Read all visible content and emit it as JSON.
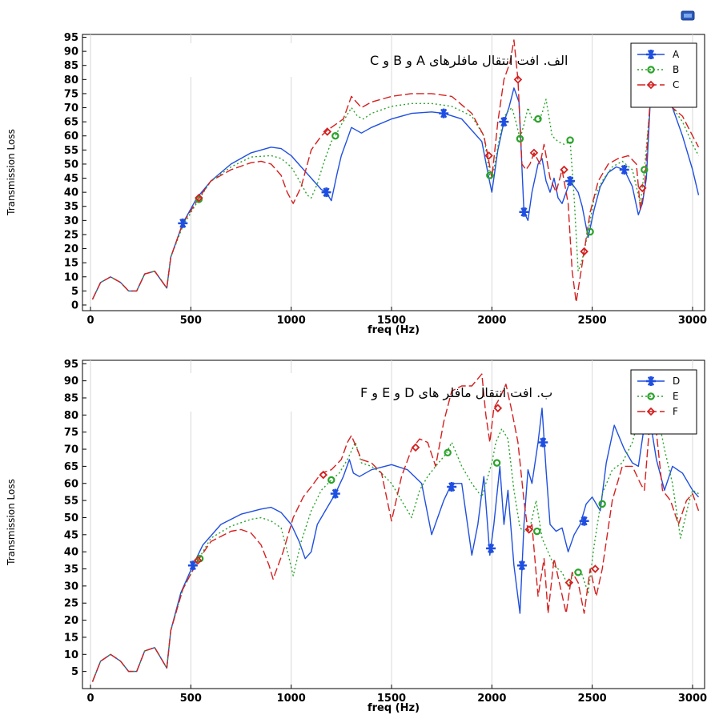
{
  "chart_data": [
    {
      "type": "line",
      "title": "الف. افت انتقال مافلرهای A و B و C",
      "xlabel": "freq (Hz)",
      "ylabel": "Transmission Loss",
      "xlim": [
        -40,
        3060
      ],
      "ylim": [
        -2,
        96
      ],
      "xticks": [
        0,
        500,
        1000,
        1500,
        2000,
        2500,
        3000
      ],
      "yticks": [
        0,
        5,
        10,
        15,
        20,
        25,
        30,
        35,
        40,
        45,
        50,
        55,
        60,
        65,
        70,
        75,
        80,
        85,
        90,
        95
      ],
      "grid": true,
      "legend_position": "top-right",
      "series": [
        {
          "name": "A",
          "color": "#1f4fe0",
          "dash": "solid",
          "marker": "asterisk",
          "x": [
            10,
            50,
            100,
            150,
            190,
            230,
            270,
            320,
            350,
            380,
            400,
            460,
            530,
            600,
            700,
            800,
            900,
            950,
            1000,
            1050,
            1100,
            1150,
            1175,
            1200,
            1230,
            1250,
            1280,
            1300,
            1350,
            1400,
            1500,
            1600,
            1700,
            1760,
            1850,
            1950,
            1985,
            2000,
            2030,
            2060,
            2085,
            2110,
            2135,
            2160,
            2180,
            2200,
            2230,
            2250,
            2270,
            2290,
            2310,
            2330,
            2350,
            2370,
            2390,
            2410,
            2430,
            2450,
            2480,
            2510,
            2540,
            2580,
            2620,
            2660,
            2700,
            2730,
            2750,
            2770,
            2790,
            2810,
            2830,
            2860,
            2900,
            2950,
            3000,
            3030
          ],
          "y": [
            2,
            8,
            10,
            8,
            5,
            5,
            11,
            12,
            9,
            6,
            17,
            29,
            38,
            44,
            50,
            54,
            56,
            55.5,
            53,
            49,
            45,
            41,
            40,
            37,
            47,
            53,
            59,
            63,
            61,
            63,
            66,
            68,
            68.5,
            68,
            66,
            58,
            45,
            40,
            55,
            65,
            70,
            77,
            72,
            33,
            30,
            40,
            50,
            52,
            44,
            40,
            45,
            38,
            36,
            40,
            44,
            42,
            40,
            35,
            24,
            34,
            42,
            47,
            49,
            48,
            42,
            32,
            36,
            45,
            73,
            80,
            78,
            73,
            70,
            60,
            48,
            39
          ],
          "markers_x": [
            460,
            1175,
            1760,
            2060,
            2160,
            2390,
            2660,
            2800
          ],
          "markers_y": [
            29,
            40,
            68,
            65,
            33,
            44,
            48,
            73
          ]
        },
        {
          "name": "B",
          "color": "#2aa32a",
          "dash": "dotted",
          "marker": "circle",
          "x": [
            10,
            50,
            100,
            150,
            190,
            230,
            270,
            320,
            350,
            380,
            400,
            460,
            540,
            600,
            700,
            800,
            900,
            950,
            1000,
            1050,
            1080,
            1100,
            1130,
            1160,
            1200,
            1220,
            1250,
            1300,
            1330,
            1360,
            1400,
            1500,
            1600,
            1700,
            1800,
            1900,
            1960,
            1990,
            2010,
            2040,
            2070,
            2100,
            2120,
            2140,
            2160,
            2180,
            2200,
            2230,
            2250,
            2270,
            2300,
            2330,
            2360,
            2390,
            2410,
            2430,
            2450,
            2480,
            2510,
            2550,
            2600,
            2650,
            2700,
            2740,
            2760,
            2790,
            2810,
            2850,
            2900,
            2950,
            3000,
            3030
          ],
          "y": [
            2,
            8,
            10,
            8,
            5,
            5,
            11,
            12,
            9,
            6,
            17,
            28,
            37.5,
            44,
            49,
            52.5,
            53,
            52,
            49,
            43,
            39,
            38,
            43,
            50,
            58,
            60,
            64,
            70,
            67,
            66,
            68,
            70.5,
            71.5,
            71.5,
            70.5,
            67,
            60,
            46,
            48,
            60,
            68,
            70,
            65,
            59,
            64,
            70,
            66,
            65,
            68,
            73,
            60,
            58,
            57,
            58,
            38,
            12,
            16,
            26,
            38,
            44,
            49,
            51,
            48,
            36,
            48,
            72,
            79,
            74,
            70,
            65,
            57,
            53
          ],
          "markers_x": [
            540,
            1220,
            1990,
            2140,
            2230,
            2390,
            2490,
            2760
          ],
          "markers_y": [
            37.5,
            60,
            46,
            59,
            66,
            58.5,
            26,
            48
          ]
        },
        {
          "name": "C",
          "color": "#d42020",
          "dash": "dashed",
          "marker": "diamond",
          "x": [
            10,
            50,
            100,
            150,
            190,
            230,
            270,
            320,
            350,
            380,
            400,
            460,
            540,
            600,
            700,
            800,
            850,
            900,
            950,
            980,
            1010,
            1050,
            1100,
            1150,
            1180,
            1220,
            1260,
            1300,
            1350,
            1400,
            1500,
            1600,
            1700,
            1800,
            1900,
            1960,
            1980,
            2000,
            2030,
            2060,
            2090,
            2110,
            2130,
            2150,
            2170,
            2190,
            2210,
            2240,
            2260,
            2290,
            2320,
            2350,
            2380,
            2400,
            2420,
            2440,
            2460,
            2490,
            2530,
            2580,
            2630,
            2680,
            2720,
            2740,
            2760,
            2790,
            2820,
            2850,
            2900,
            2950,
            3000,
            3030
          ],
          "y": [
            2,
            8,
            10,
            8,
            5,
            5,
            11,
            12,
            9,
            6,
            17,
            29,
            38,
            44,
            48,
            50.5,
            51,
            50,
            46,
            40,
            36,
            42,
            55,
            60,
            62,
            64,
            66,
            74,
            70,
            72,
            74,
            75,
            75,
            74,
            68,
            60,
            53,
            45,
            65,
            80,
            86,
            94,
            80,
            50,
            48,
            50,
            54,
            50,
            57,
            45,
            40,
            48,
            36,
            12,
            1,
            10,
            19,
            33,
            44,
            50,
            52,
            53,
            50,
            34,
            41,
            74,
            82,
            75,
            70,
            67,
            60,
            56
          ],
          "markers_x": [
            540,
            1180,
            1985,
            2130,
            2210,
            2360,
            2460,
            2750
          ],
          "markers_y": [
            38,
            61.5,
            53,
            80,
            54,
            48,
            19,
            41.5
          ]
        }
      ]
    },
    {
      "type": "line",
      "title": "ب. افت انتقال مافلر های D و E و F",
      "xlabel": "freq (Hz)",
      "ylabel": "Transmission Loss",
      "xlim": [
        -40,
        3060
      ],
      "ylim": [
        0,
        96
      ],
      "xticks": [
        0,
        500,
        1000,
        1500,
        2000,
        2500,
        3000
      ],
      "yticks": [
        5,
        10,
        15,
        20,
        25,
        30,
        35,
        40,
        45,
        50,
        55,
        60,
        65,
        70,
        75,
        80,
        85,
        90,
        95
      ],
      "grid": true,
      "legend_position": "top-right",
      "series": [
        {
          "name": "D",
          "color": "#1f4fe0",
          "dash": "solid",
          "marker": "asterisk",
          "x": [
            10,
            50,
            100,
            150,
            190,
            230,
            270,
            320,
            350,
            380,
            400,
            450,
            510,
            560,
            650,
            750,
            850,
            900,
            950,
            1000,
            1040,
            1070,
            1100,
            1130,
            1170,
            1220,
            1260,
            1290,
            1310,
            1340,
            1400,
            1500,
            1580,
            1650,
            1700,
            1730,
            1760,
            1800,
            1850,
            1900,
            1930,
            1960,
            1990,
            2010,
            2040,
            2060,
            2080,
            2110,
            2140,
            2160,
            2180,
            2200,
            2230,
            2250,
            2270,
            2290,
            2320,
            2350,
            2380,
            2410,
            2440,
            2470,
            2500,
            2540,
            2570,
            2610,
            2660,
            2700,
            2730,
            2760,
            2790,
            2820,
            2860,
            2900,
            2950,
            3000,
            3030
          ],
          "y": [
            2,
            8,
            10,
            8,
            5,
            5,
            11,
            12,
            9,
            6,
            17,
            28,
            36,
            42,
            48,
            51,
            52.5,
            53,
            51.5,
            48,
            43,
            38,
            40,
            48,
            52,
            57,
            62,
            67,
            63,
            62,
            64,
            65.5,
            64,
            60,
            45,
            50,
            55,
            60,
            60,
            39,
            48,
            62,
            39,
            48,
            65,
            48,
            58,
            36,
            22,
            48,
            64,
            60,
            72,
            82,
            64,
            48,
            46,
            47,
            40,
            45,
            48,
            54,
            56,
            52,
            66,
            77,
            70,
            66,
            65,
            77,
            78,
            67,
            58,
            65,
            63,
            58,
            56
          ],
          "markers_x": [
            510,
            1220,
            1800,
            1995,
            2150,
            2255,
            2460,
            2800
          ],
          "markers_y": [
            36,
            57,
            59,
            41,
            36,
            72,
            49,
            78
          ]
        },
        {
          "name": "E",
          "color": "#2aa32a",
          "dash": "dotted",
          "marker": "circle",
          "x": [
            10,
            50,
            100,
            150,
            190,
            230,
            270,
            320,
            350,
            380,
            400,
            460,
            540,
            600,
            700,
            800,
            850,
            900,
            950,
            990,
            1010,
            1050,
            1100,
            1150,
            1200,
            1240,
            1280,
            1320,
            1350,
            1400,
            1450,
            1500,
            1550,
            1600,
            1640,
            1680,
            1720,
            1770,
            1800,
            1850,
            1900,
            1950,
            1980,
            2000,
            2020,
            2050,
            2080,
            2110,
            2140,
            2160,
            2190,
            2220,
            2250,
            2280,
            2310,
            2350,
            2380,
            2410,
            2440,
            2480,
            2510,
            2550,
            2600,
            2650,
            2700,
            2750,
            2790,
            2820,
            2860,
            2900,
            2940,
            2980,
            3000,
            3030
          ],
          "y": [
            2,
            8,
            10,
            8,
            5,
            5,
            11,
            12,
            9,
            6,
            17,
            29,
            38,
            44,
            47.5,
            49.5,
            50,
            49,
            47,
            38,
            33,
            43,
            52,
            58,
            61,
            63,
            67,
            72,
            66,
            65,
            63,
            60,
            55,
            50,
            58,
            62,
            65,
            68.5,
            72,
            65,
            60,
            56,
            62,
            66,
            72,
            76,
            73,
            58,
            47,
            46,
            47,
            55,
            44,
            40,
            36,
            34,
            30,
            34,
            35,
            28,
            42,
            57,
            64,
            66,
            72,
            83,
            90,
            82,
            70,
            60,
            44,
            54,
            58,
            57
          ],
          "markers_x": [
            545,
            1200,
            1780,
            2025,
            2225,
            2430,
            2550
          ],
          "markers_y": [
            38,
            61,
            69,
            66,
            46,
            34,
            54
          ]
        },
        {
          "name": "F",
          "color": "#d42020",
          "dash": "dashed",
          "marker": "diamond",
          "x": [
            10,
            50,
            100,
            150,
            190,
            230,
            270,
            320,
            350,
            380,
            400,
            460,
            530,
            600,
            700,
            750,
            800,
            850,
            890,
            910,
            960,
            1010,
            1060,
            1100,
            1150,
            1200,
            1250,
            1280,
            1300,
            1350,
            1400,
            1450,
            1500,
            1550,
            1600,
            1640,
            1680,
            1720,
            1760,
            1800,
            1850,
            1900,
            1950,
            1970,
            1990,
            2010,
            2040,
            2070,
            2100,
            2130,
            2160,
            2180,
            2200,
            2230,
            2260,
            2280,
            2310,
            2340,
            2370,
            2400,
            2430,
            2460,
            2490,
            2520,
            2550,
            2600,
            2650,
            2700,
            2740,
            2760,
            2790,
            2820,
            2850,
            2890,
            2930,
            2970,
            3000,
            3030
          ],
          "y": [
            2,
            8,
            10,
            8,
            5,
            5,
            11,
            12,
            9,
            6,
            17,
            29,
            37,
            43,
            46,
            46.5,
            45.5,
            42,
            36,
            32,
            40,
            50,
            56,
            59,
            63,
            64,
            67,
            72,
            74,
            67,
            66,
            63,
            49,
            62,
            70,
            73,
            72,
            65,
            78,
            87,
            88.5,
            88.5,
            92,
            80,
            72,
            82,
            85,
            89,
            81,
            72,
            55,
            46,
            48,
            27,
            38,
            22,
            38,
            30,
            22,
            34,
            31,
            22,
            35,
            27,
            35,
            55,
            65,
            65,
            60,
            58,
            80,
            75,
            58,
            55,
            48,
            55,
            57,
            52
          ],
          "markers_x": [
            535,
            1160,
            1620,
            2030,
            2185,
            2385,
            2515,
            2790
          ],
          "markers_y": [
            37.5,
            62.5,
            70.5,
            82,
            46.5,
            31,
            35,
            77.5
          ]
        }
      ]
    }
  ]
}
